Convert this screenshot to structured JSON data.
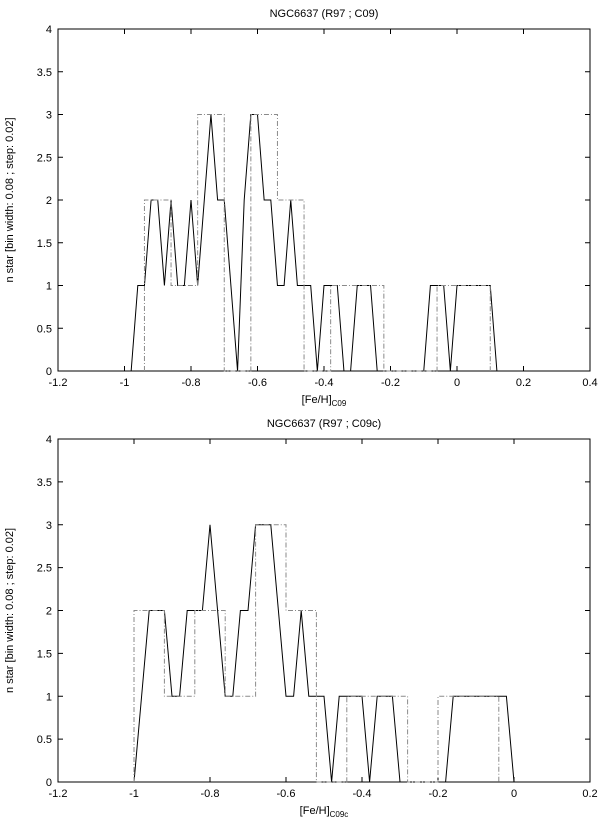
{
  "chart_data": [
    {
      "type": "line",
      "title": "NGC6637 (R97 ; C09)",
      "xlabel": "[Fe/H]",
      "xlabel_sub": "C09",
      "ylabel": "n star [bin width: 0.08 ; step: 0.02]",
      "xlim": [
        -1.2,
        0.4
      ],
      "ylim": [
        0,
        4
      ],
      "xticks": [
        "-1.2",
        "-1",
        "-0.8",
        "-0.6",
        "-0.4",
        "-0.2",
        "0",
        "0.2",
        "0.4"
      ],
      "yticks": [
        "0",
        "0.5",
        "1",
        "1.5",
        "2",
        "2.5",
        "3",
        "3.5",
        "4"
      ],
      "series": [
        {
          "style": "solid",
          "x": [
            -0.98,
            -0.96,
            -0.94,
            -0.92,
            -0.9,
            -0.88,
            -0.86,
            -0.84,
            -0.82,
            -0.8,
            -0.78,
            -0.76,
            -0.74,
            -0.72,
            -0.7,
            -0.68,
            -0.66,
            -0.64,
            -0.62,
            -0.6,
            -0.58,
            -0.56,
            -0.54,
            -0.52,
            -0.5,
            -0.48,
            -0.46,
            -0.44,
            -0.42,
            -0.4,
            -0.38,
            -0.36,
            -0.34,
            -0.32,
            -0.3,
            -0.28,
            -0.26,
            -0.24,
            -0.22,
            -0.2,
            -0.18,
            -0.16,
            -0.14,
            -0.12,
            -0.1,
            -0.08,
            -0.06,
            -0.04,
            -0.02,
            0,
            0.02,
            0.04,
            0.06,
            0.08,
            0.1,
            0.12
          ],
          "y": [
            0,
            1,
            1,
            2,
            2,
            1,
            2,
            1,
            1,
            2,
            1,
            2,
            3,
            2,
            2,
            1,
            0,
            2,
            3,
            3,
            2,
            2,
            1,
            1,
            2,
            1,
            1,
            1,
            0,
            1,
            1,
            1,
            0,
            0,
            1,
            1,
            1,
            0,
            0,
            0,
            0,
            0,
            0,
            0,
            0,
            1,
            1,
            1,
            0,
            1,
            1,
            1,
            1,
            1,
            1,
            0
          ]
        },
        {
          "style": "dashdot",
          "x": [
            -0.94,
            -0.94,
            -0.86,
            -0.86,
            -0.78,
            -0.78,
            -0.7,
            -0.7,
            -0.62,
            -0.62,
            -0.54,
            -0.54,
            -0.46,
            -0.46,
            -0.38,
            -0.38,
            -0.22,
            -0.22,
            -0.06,
            -0.06,
            0.1,
            0.1
          ],
          "y": [
            0,
            2,
            2,
            1,
            1,
            3,
            3,
            0,
            0,
            3,
            3,
            2,
            2,
            0,
            0,
            1,
            1,
            0,
            0,
            1,
            1,
            0
          ]
        }
      ]
    },
    {
      "type": "line",
      "title": "NGC6637 (R97 ; C09c)",
      "xlabel": "[Fe/H]",
      "xlabel_sub": "C09c",
      "ylabel": "n star [bin width: 0.08 ; step: 0.02]",
      "xlim": [
        -1.2,
        0.2
      ],
      "ylim": [
        0,
        4
      ],
      "xticks": [
        "-1.2",
        "-1",
        "-0.8",
        "-0.6",
        "-0.4",
        "-0.2",
        "0",
        "0.2"
      ],
      "yticks": [
        "0",
        "0.5",
        "1",
        "1.5",
        "2",
        "2.5",
        "3",
        "3.5",
        "4"
      ],
      "series": [
        {
          "style": "solid",
          "x": [
            -1,
            -0.98,
            -0.96,
            -0.94,
            -0.92,
            -0.9,
            -0.88,
            -0.86,
            -0.84,
            -0.82,
            -0.8,
            -0.78,
            -0.76,
            -0.74,
            -0.72,
            -0.7,
            -0.68,
            -0.66,
            -0.64,
            -0.62,
            -0.6,
            -0.58,
            -0.56,
            -0.54,
            -0.52,
            -0.5,
            -0.48,
            -0.46,
            -0.44,
            -0.42,
            -0.4,
            -0.38,
            -0.36,
            -0.34,
            -0.32,
            -0.3,
            -0.28,
            -0.26,
            -0.24,
            -0.22,
            -0.2,
            -0.18,
            -0.16,
            -0.14,
            -0.12,
            -0.1,
            -0.08,
            -0.06,
            -0.04,
            -0.02,
            0
          ],
          "y": [
            0,
            1,
            2,
            2,
            2,
            1,
            1,
            2,
            2,
            2,
            3,
            2,
            1,
            1,
            2,
            2,
            3,
            3,
            3,
            2,
            1,
            1,
            2,
            1,
            1,
            1,
            0,
            1,
            1,
            1,
            1,
            0,
            1,
            1,
            1,
            0,
            0,
            0,
            0,
            0,
            0,
            0,
            1,
            1,
            1,
            1,
            1,
            1,
            1,
            1,
            0
          ]
        },
        {
          "style": "dashdot",
          "x": [
            -1,
            -1,
            -0.92,
            -0.92,
            -0.84,
            -0.84,
            -0.76,
            -0.76,
            -0.68,
            -0.68,
            -0.6,
            -0.6,
            -0.52,
            -0.52,
            -0.44,
            -0.44,
            -0.28,
            -0.28,
            -0.2,
            -0.2,
            -0.04,
            -0.04
          ],
          "y": [
            0,
            2,
            2,
            1,
            1,
            2,
            2,
            1,
            1,
            3,
            3,
            2,
            2,
            0,
            0,
            1,
            1,
            0,
            0,
            1,
            1,
            0
          ]
        }
      ]
    }
  ]
}
